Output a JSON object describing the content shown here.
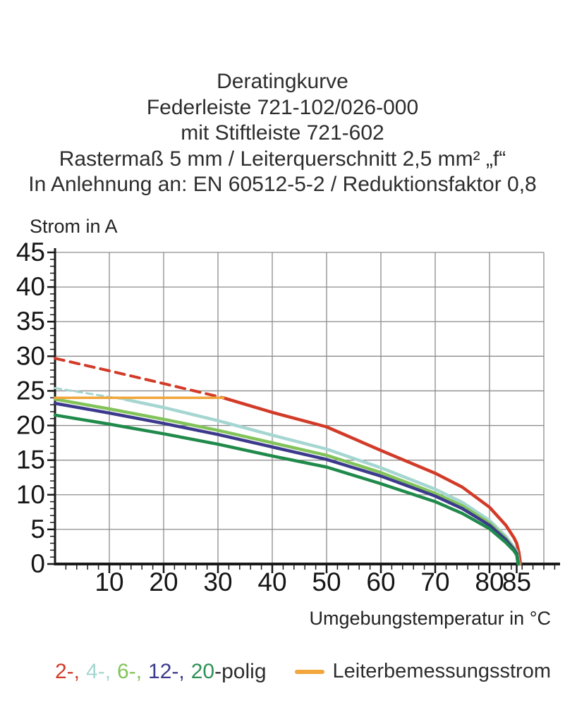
{
  "title": {
    "line1": "Deratingkurve",
    "line2": "Federleiste 721-102/026-000",
    "line3": "mit Stiftleiste 721-602",
    "line4": "Rastermaß 5 mm / Leiterquerschnitt 2,5 mm² „f“",
    "line5": "In Anlehnung an: EN 60512-5-2 / Reduktionsfaktor 0,8"
  },
  "chart_data": {
    "type": "line",
    "xlabel": "Umgebungstemperatur in °C",
    "ylabel": "Strom in A",
    "xlim": [
      0,
      90
    ],
    "ylim": [
      0,
      45
    ],
    "x_major_ticks": [
      10,
      20,
      30,
      40,
      50,
      60,
      70,
      80,
      85
    ],
    "x_tick_labels": [
      "10",
      "20",
      "30",
      "40",
      "50",
      "60",
      "70",
      "80",
      "85"
    ],
    "x_minor_step": 2,
    "y_major_step": 5,
    "y_minor_step": 1,
    "grid": true,
    "grid_color": "#8c8c8c",
    "axis_color": "#1a1a1a",
    "legend_position": "bottom",
    "series": [
      {
        "name": "2-polig oberhalb Bemessungsstrom",
        "color": "#d23b28",
        "style": "dashed",
        "width": 4,
        "points": [
          [
            0,
            29.7
          ],
          [
            10,
            27.9
          ],
          [
            20,
            26.05
          ],
          [
            31,
            24.0
          ]
        ]
      },
      {
        "name": "2-polig",
        "color": "#d23b28",
        "style": "solid",
        "width": 4.5,
        "points": [
          [
            31,
            24.0
          ],
          [
            40,
            21.9
          ],
          [
            50,
            19.8
          ],
          [
            60,
            16.4
          ],
          [
            70,
            13.1
          ],
          [
            75,
            11.1
          ],
          [
            80,
            8.2
          ],
          [
            83,
            5.6
          ],
          [
            84.5,
            3.8
          ],
          [
            85,
            3.0
          ],
          [
            85.4,
            1.7
          ],
          [
            85.7,
            0
          ]
        ]
      },
      {
        "name": "4-polig oberhalb Bemessungsstrom",
        "color": "#a5d6d1",
        "style": "dashed",
        "width": 3,
        "points": [
          [
            0,
            25.4
          ],
          [
            13,
            23.75
          ]
        ]
      },
      {
        "name": "4-polig",
        "color": "#a5d6d1",
        "style": "solid",
        "width": 4.5,
        "points": [
          [
            13,
            23.75
          ],
          [
            20,
            22.6
          ],
          [
            30,
            20.7
          ],
          [
            40,
            18.6
          ],
          [
            50,
            16.6
          ],
          [
            60,
            13.9
          ],
          [
            70,
            10.8
          ],
          [
            75,
            8.9
          ],
          [
            80,
            6.3
          ],
          [
            83,
            4.0
          ],
          [
            84.5,
            2.4
          ],
          [
            85,
            1.8
          ],
          [
            85.45,
            0
          ]
        ]
      },
      {
        "name": "6-polig",
        "color": "#82c35a",
        "style": "solid",
        "width": 4.5,
        "points": [
          [
            0,
            23.8
          ],
          [
            10,
            22.4
          ],
          [
            20,
            20.9
          ],
          [
            30,
            19.3
          ],
          [
            40,
            17.5
          ],
          [
            50,
            15.7
          ],
          [
            60,
            13.2
          ],
          [
            70,
            10.2
          ],
          [
            75,
            8.4
          ],
          [
            80,
            5.9
          ],
          [
            83,
            3.7
          ],
          [
            84.5,
            2.2
          ],
          [
            85,
            1.6
          ],
          [
            85.4,
            0
          ]
        ]
      },
      {
        "name": "12-polig",
        "color": "#3c3a8c",
        "style": "solid",
        "width": 4.5,
        "points": [
          [
            0,
            23.2
          ],
          [
            10,
            21.8
          ],
          [
            20,
            20.3
          ],
          [
            30,
            18.7
          ],
          [
            40,
            16.9
          ],
          [
            50,
            15.1
          ],
          [
            60,
            12.7
          ],
          [
            70,
            9.8
          ],
          [
            75,
            8.0
          ],
          [
            80,
            5.6
          ],
          [
            83,
            3.5
          ],
          [
            84.5,
            2.1
          ],
          [
            85,
            1.5
          ],
          [
            85.3,
            0
          ]
        ]
      },
      {
        "name": "20-polig",
        "color": "#208a4b",
        "style": "solid",
        "width": 4.5,
        "points": [
          [
            0,
            21.5
          ],
          [
            10,
            20.2
          ],
          [
            20,
            18.8
          ],
          [
            30,
            17.3
          ],
          [
            40,
            15.6
          ],
          [
            50,
            14.0
          ],
          [
            60,
            11.6
          ],
          [
            70,
            9.0
          ],
          [
            75,
            7.3
          ],
          [
            80,
            5.1
          ],
          [
            83,
            3.1
          ],
          [
            84.5,
            1.9
          ],
          [
            85,
            1.3
          ],
          [
            85.25,
            0
          ]
        ]
      },
      {
        "name": "Leiterbemessungsstrom",
        "color": "#f2a63c",
        "style": "solid",
        "width": 3.5,
        "points": [
          [
            0,
            24
          ],
          [
            31,
            24
          ]
        ]
      }
    ]
  },
  "legend": {
    "poles": {
      "items": [
        {
          "label": "2-,",
          "color": "#d23b28"
        },
        {
          "label": "4-,",
          "color": "#a5d6d1"
        },
        {
          "label": "6-,",
          "color": "#82c35a"
        },
        {
          "label": "12-,",
          "color": "#3c3a8c"
        },
        {
          "label": "20",
          "color": "#2f9157"
        }
      ],
      "suffix": "-polig",
      "suffix_color": "#2d2d2d"
    },
    "rated": {
      "label": "Leiterbemessungsstrom",
      "swatch_color": "#f2a63c"
    }
  }
}
